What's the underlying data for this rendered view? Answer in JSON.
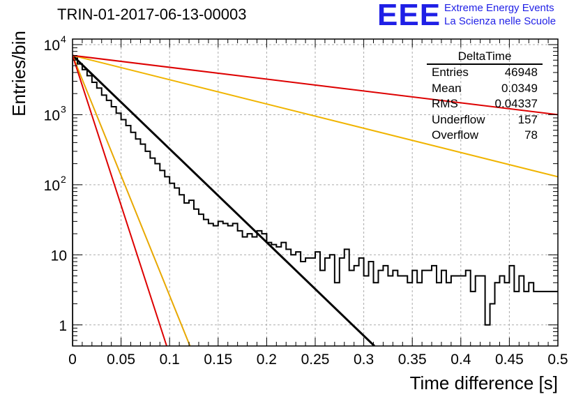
{
  "header": {
    "run_title": "TRIN-01-2017-06-13-00003",
    "logo_text": "EEE",
    "logo_line1": "Extreme Energy Events",
    "logo_line2": "La Scienza nelle Scuole"
  },
  "stats": {
    "title": "DeltaTime",
    "rows": [
      {
        "label": "Entries",
        "value": "46948"
      },
      {
        "label": "Mean",
        "value": "0.0349"
      },
      {
        "label": "RMS",
        "value": "0.04337"
      },
      {
        "label": "Underflow",
        "value": "157"
      },
      {
        "label": "Overflow",
        "value": "78"
      }
    ]
  },
  "chart_data": {
    "type": "line",
    "xlabel": "Time difference [s]",
    "ylabel": "Entries/bin",
    "xlim": [
      0,
      0.5
    ],
    "ylim": [
      0.5,
      12000
    ],
    "yscale": "log",
    "grid": true,
    "x_ticks": [
      "0",
      "0.05",
      "0.1",
      "0.15",
      "0.2",
      "0.25",
      "0.3",
      "0.35",
      "0.4",
      "0.45",
      "0.5"
    ],
    "y_ticks": [
      {
        "value": 1,
        "label": "1"
      },
      {
        "value": 10,
        "label": "10"
      },
      {
        "value": 100,
        "label": "10",
        "sup": "2"
      },
      {
        "value": 1000,
        "label": "10",
        "sup": "3"
      },
      {
        "value": 10000,
        "label": "10",
        "sup": "4"
      }
    ],
    "histogram": {
      "bin_width": 0.005,
      "color": "#000000",
      "values": [
        6400,
        5300,
        4400,
        3600,
        2900,
        2400,
        1900,
        1600,
        1300,
        1050,
        850,
        700,
        560,
        450,
        380,
        300,
        240,
        200,
        160,
        130,
        105,
        90,
        72,
        55,
        60,
        45,
        38,
        32,
        28,
        26,
        30,
        28,
        26,
        28,
        22,
        18,
        20,
        18,
        22,
        20,
        15,
        14,
        13,
        15,
        12,
        10,
        11,
        8,
        9,
        9,
        11,
        6,
        9,
        10,
        4,
        9,
        12,
        6,
        7,
        9,
        5,
        8,
        4,
        6,
        7,
        5,
        6,
        5,
        5,
        4,
        6,
        4,
        6,
        6,
        7,
        4,
        6,
        4,
        5,
        5,
        5,
        6,
        3,
        5,
        5,
        1,
        2,
        4,
        5,
        4,
        7,
        3,
        5,
        3,
        4,
        3,
        3,
        3,
        3,
        3,
        3
      ]
    },
    "fit_lines": [
      {
        "color": "#000000",
        "points": [
          [
            0,
            7000
          ],
          [
            0.311,
            0.5
          ]
        ]
      },
      {
        "color": "#e8a800",
        "points": [
          [
            0,
            7000
          ],
          [
            0.121,
            0.5
          ]
        ]
      },
      {
        "color": "#dd0000",
        "points": [
          [
            0,
            7000
          ],
          [
            0.097,
            0.5
          ]
        ]
      },
      {
        "color": "#f0b400",
        "points": [
          [
            0,
            7000
          ],
          [
            0.5,
            130
          ]
        ]
      },
      {
        "color": "#dd0000",
        "points": [
          [
            0,
            7000
          ],
          [
            0.5,
            1000
          ]
        ]
      }
    ]
  }
}
